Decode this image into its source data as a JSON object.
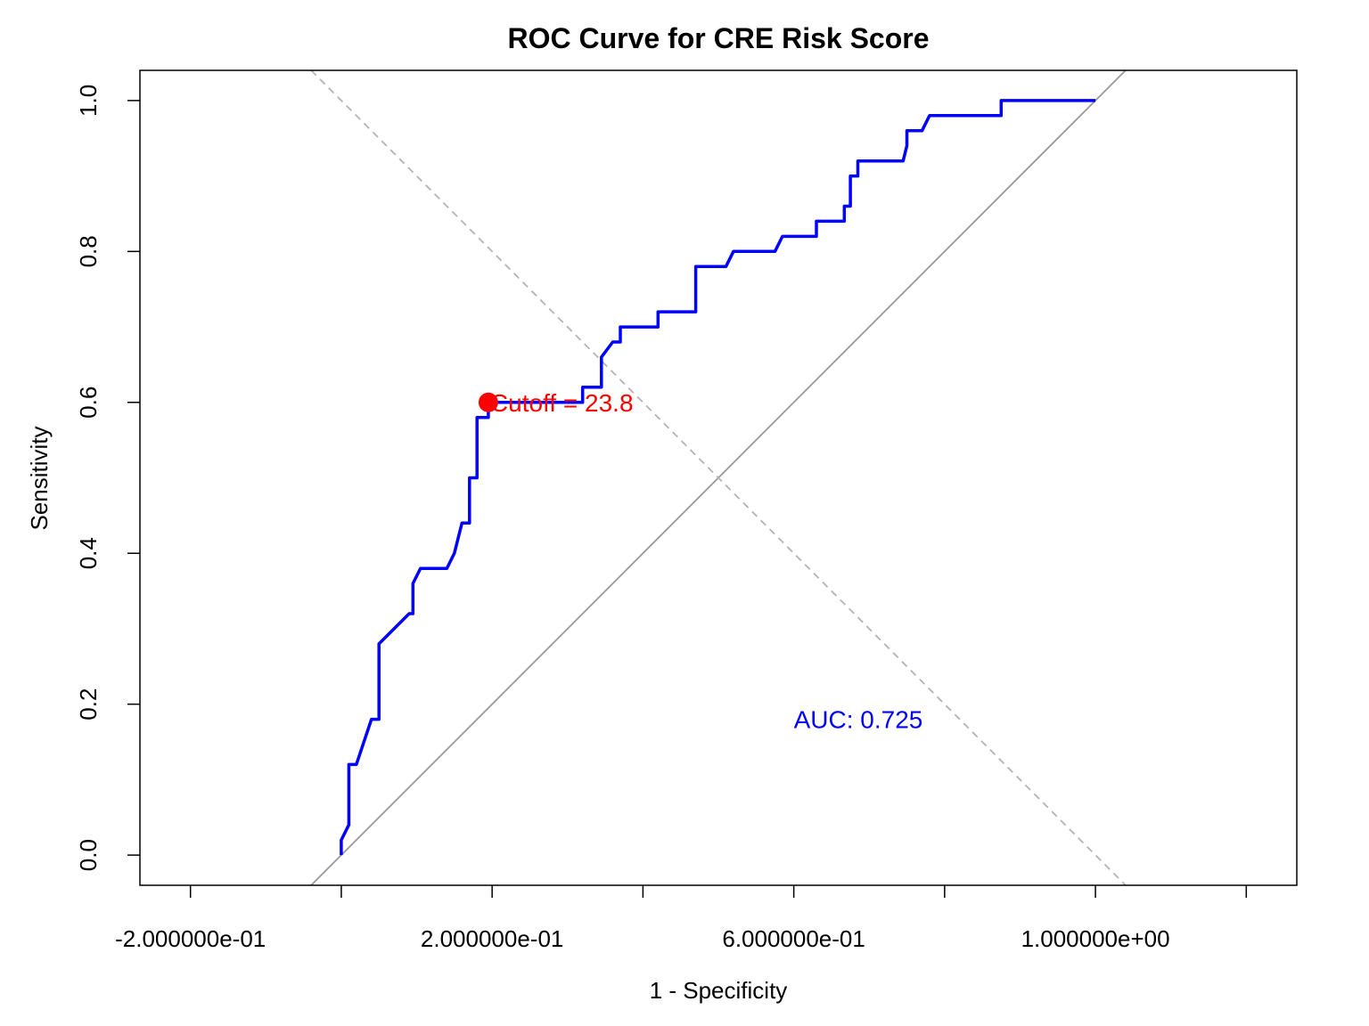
{
  "chart_data": {
    "type": "line",
    "title": "ROC Curve for CRE Risk Score",
    "xlabel": "1 - Specificity",
    "ylabel": "Sensitivity",
    "xlim": [
      -0.267,
      1.267
    ],
    "ylim": [
      -0.04,
      1.04
    ],
    "x_ticks": [
      -0.2,
      0.0,
      0.2,
      0.4,
      0.6,
      0.8,
      1.0,
      1.2
    ],
    "x_tick_labels": [
      "-2.000000e-01",
      "",
      "2.000000e-01",
      "",
      "6.000000e-01",
      "",
      "1.000000e+00",
      ""
    ],
    "y_ticks": [
      0.0,
      0.2,
      0.4,
      0.6,
      0.8,
      1.0
    ],
    "y_tick_labels": [
      "0.0",
      "0.2",
      "0.4",
      "0.6",
      "0.8",
      "1.0"
    ],
    "grid": false,
    "colors": {
      "roc": "#0000ff",
      "cutoff": "#ff0000",
      "reference": "#999999",
      "dashed": "#b3b3b3",
      "auc": "#0000ff"
    },
    "series": [
      {
        "x": [
          0.0,
          0.0,
          0.01,
          0.01,
          0.02,
          0.04,
          0.05,
          0.05,
          0.09,
          0.095,
          0.095,
          0.105,
          0.14,
          0.15,
          0.16,
          0.165,
          0.17,
          0.17,
          0.18,
          0.18,
          0.195,
          0.195,
          0.2,
          0.32,
          0.32,
          0.345,
          0.345,
          0.36,
          0.37,
          0.37,
          0.42,
          0.42,
          0.47,
          0.47,
          0.51,
          0.52,
          0.575,
          0.585,
          0.63,
          0.63,
          0.667,
          0.667,
          0.675,
          0.675,
          0.685,
          0.685,
          0.745,
          0.75,
          0.75,
          0.77,
          0.78,
          0.875,
          0.875,
          1.0
        ],
        "y": [
          0.0,
          0.02,
          0.04,
          0.12,
          0.12,
          0.18,
          0.18,
          0.28,
          0.32,
          0.32,
          0.36,
          0.38,
          0.38,
          0.4,
          0.44,
          0.44,
          0.44,
          0.5,
          0.5,
          0.58,
          0.58,
          0.6,
          0.6,
          0.6,
          0.62,
          0.62,
          0.66,
          0.68,
          0.68,
          0.7,
          0.7,
          0.72,
          0.72,
          0.78,
          0.78,
          0.8,
          0.8,
          0.82,
          0.82,
          0.84,
          0.84,
          0.86,
          0.86,
          0.9,
          0.9,
          0.92,
          0.92,
          0.94,
          0.96,
          0.96,
          0.98,
          0.98,
          1.0,
          1.0
        ]
      }
    ],
    "reference_line": {
      "from": [
        -0.04,
        -0.04
      ],
      "to": [
        1.04,
        1.04
      ]
    },
    "dashed_line": {
      "from": [
        -0.04,
        1.04
      ],
      "to": [
        1.04,
        -0.04
      ]
    },
    "cutoff_point": {
      "x": 0.195,
      "y": 0.6,
      "label": "Cutoff = 23.8"
    },
    "auc_label": {
      "text": "AUC: 0.725",
      "x": 0.6,
      "y": 0.18
    }
  }
}
